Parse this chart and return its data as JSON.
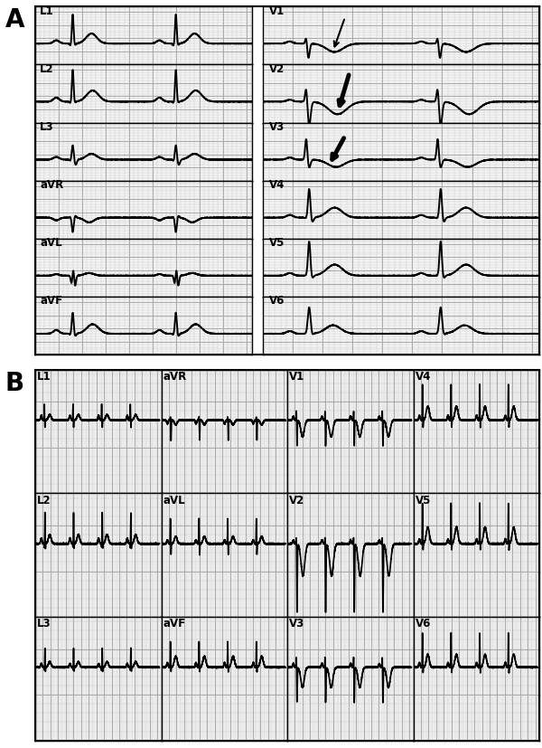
{
  "fig_width": 6.0,
  "fig_height": 8.28,
  "dpi": 100,
  "bg_color": "#ffffff",
  "grid_minor_color": "#cccccc",
  "grid_major_color": "#aaaaaa",
  "grid_bg": "#f5f5f5",
  "ecg_color": "#000000",
  "ecg_lw": 1.4,
  "panel_A_label": "A",
  "panel_B_label": "B",
  "panel_label_fontsize": 20,
  "lead_label_fontsize": 8.5
}
